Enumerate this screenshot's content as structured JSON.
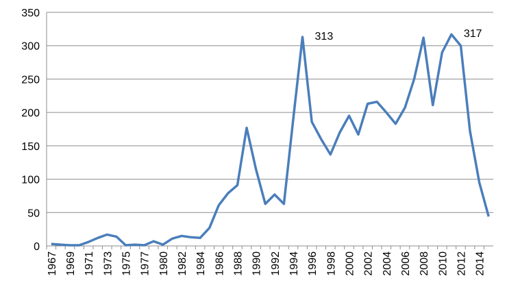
{
  "chart_data": {
    "type": "line",
    "categories": [
      "1967",
      null,
      "1969",
      null,
      "1971",
      null,
      "1973",
      null,
      "1975",
      null,
      "1977",
      null,
      "1980",
      null,
      "1982",
      null,
      "1984",
      null,
      "1986",
      null,
      "1988",
      null,
      "1990",
      null,
      "1992",
      null,
      "1994",
      null,
      "1996",
      null,
      "1998",
      null,
      "2000",
      null,
      "2002",
      null,
      "2004",
      null,
      "2006",
      null,
      "2008",
      null,
      "2010",
      null,
      "2012",
      null,
      "2014",
      null
    ],
    "values": [
      3,
      2,
      1,
      1,
      6,
      12,
      17,
      14,
      1,
      2,
      1,
      7,
      2,
      11,
      15,
      13,
      12,
      27,
      61,
      79,
      91,
      177,
      115,
      63,
      77,
      63,
      190,
      313,
      186,
      160,
      137,
      170,
      195,
      167,
      213,
      216,
      200,
      183,
      207,
      250,
      312,
      211,
      290,
      317,
      300,
      172,
      95,
      44
    ],
    "value_labels": [
      null,
      null,
      null,
      null,
      null,
      null,
      null,
      null,
      null,
      null,
      null,
      null,
      null,
      null,
      null,
      null,
      null,
      null,
      null,
      null,
      null,
      null,
      null,
      null,
      null,
      null,
      null,
      "313",
      null,
      null,
      null,
      null,
      null,
      null,
      null,
      null,
      null,
      null,
      null,
      null,
      null,
      null,
      null,
      "317",
      null,
      null,
      null,
      null
    ],
    "color": "#4a7ebb",
    "ylim": [
      0,
      350
    ],
    "yticks": [
      0,
      50,
      100,
      150,
      200,
      250,
      300,
      350
    ],
    "grid": true
  }
}
